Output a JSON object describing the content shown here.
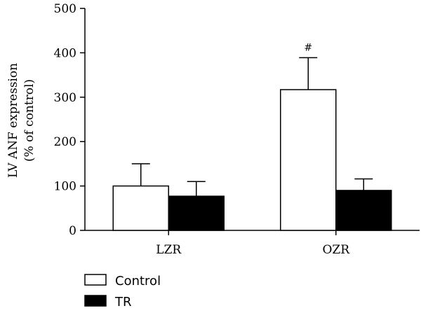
{
  "chart_data": {
    "type": "bar",
    "ylabel_line1": "LV ANF expression",
    "ylabel_line2": "(% of control)",
    "ylim": [
      0,
      500
    ],
    "yticks": [
      0,
      100,
      200,
      300,
      400,
      500
    ],
    "categories": [
      "LZR",
      "OZR"
    ],
    "series": [
      {
        "name": "Control",
        "values": [
          100,
          317
        ],
        "errors": [
          50,
          72
        ],
        "color": "#ffffff",
        "stroke": "#000000"
      },
      {
        "name": "TR",
        "values": [
          77,
          90
        ],
        "errors": [
          33,
          26
        ],
        "color": "#000000",
        "stroke": "#000000"
      }
    ],
    "annotations": [
      {
        "category_index": 1,
        "series_index": 0,
        "text": "#"
      }
    ],
    "legend_position": "bottom-left",
    "grid": false
  }
}
